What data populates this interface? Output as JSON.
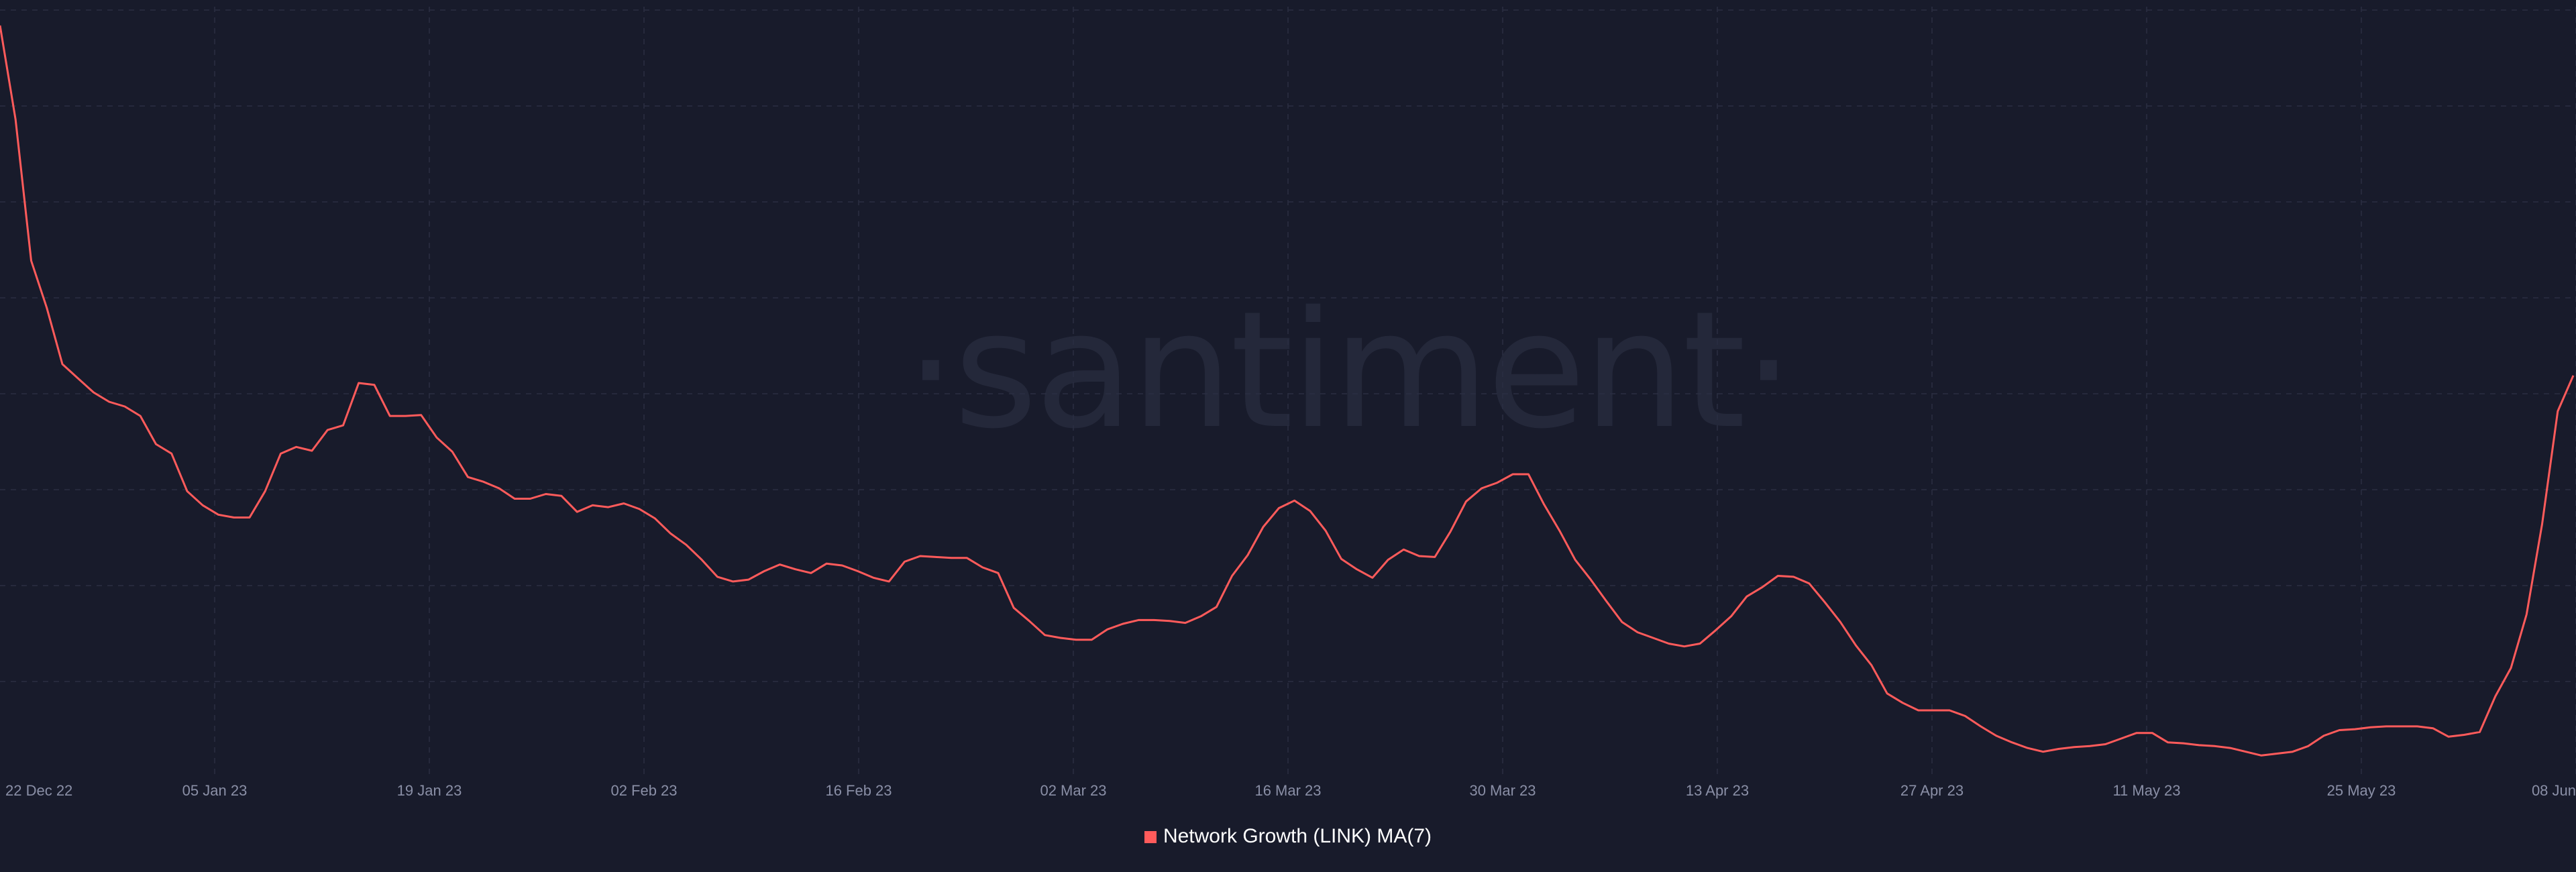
{
  "watermark": {
    "text": "·santiment·"
  },
  "colors": {
    "background": "#181b2b",
    "series": "#ff5b5b",
    "grid": "#2a2e42",
    "tick": "#8a8fa6"
  },
  "chart_data": {
    "type": "line",
    "title": "",
    "xlabel": "",
    "ylabel": "",
    "grid": true,
    "legend_position": "bottom-center",
    "x_tick_labels": [
      "22 Dec 22",
      "05 Jan 23",
      "19 Jan 23",
      "02 Feb 23",
      "16 Feb 23",
      "02 Mar 23",
      "16 Mar 23",
      "30 Mar 23",
      "13 Apr 23",
      "27 Apr 23",
      "11 May 23",
      "25 May 23",
      "08 Jun"
    ],
    "x_start": "2022-12-22",
    "x_end": "2023-06-08",
    "ylim": [
      0,
      820
    ],
    "series": [
      {
        "name": "Network Growth (LINK) MA(7)",
        "values": [
          800,
          700,
          550,
          500,
          440,
          425,
          410,
          400,
          395,
          385,
          355,
          345,
          305,
          290,
          280,
          277,
          277,
          305,
          345,
          352,
          348,
          370,
          375,
          420,
          418,
          385,
          385,
          386,
          362,
          347,
          320,
          315,
          308,
          297,
          297,
          302,
          300,
          283,
          290,
          288,
          292,
          286,
          276,
          260,
          248,
          232,
          214,
          209,
          211,
          220,
          227,
          222,
          218,
          228,
          226,
          220,
          213,
          209,
          230,
          236,
          235,
          234,
          234,
          224,
          218,
          181,
          167,
          152,
          149,
          147,
          147,
          158,
          164,
          168,
          168,
          167,
          165,
          172,
          182,
          215,
          237,
          267,
          287,
          295,
          284,
          263,
          233,
          222,
          213,
          232,
          243,
          236,
          235,
          262,
          294,
          308,
          314,
          323,
          323,
          291,
          263,
          232,
          211,
          188,
          166,
          155,
          149,
          143,
          140,
          143,
          157,
          172,
          193,
          203,
          215,
          214,
          207,
          187,
          166,
          141,
          120,
          90,
          80,
          72,
          72,
          72,
          66,
          55,
          45,
          38,
          32,
          28,
          31,
          33,
          34,
          36,
          42,
          48,
          48,
          38,
          37,
          35,
          34,
          32,
          28,
          24,
          26,
          28,
          34,
          45,
          51,
          52,
          54,
          55,
          55,
          55,
          53,
          44,
          46,
          49,
          87,
          117,
          174,
          270,
          390,
          428
        ]
      }
    ]
  }
}
